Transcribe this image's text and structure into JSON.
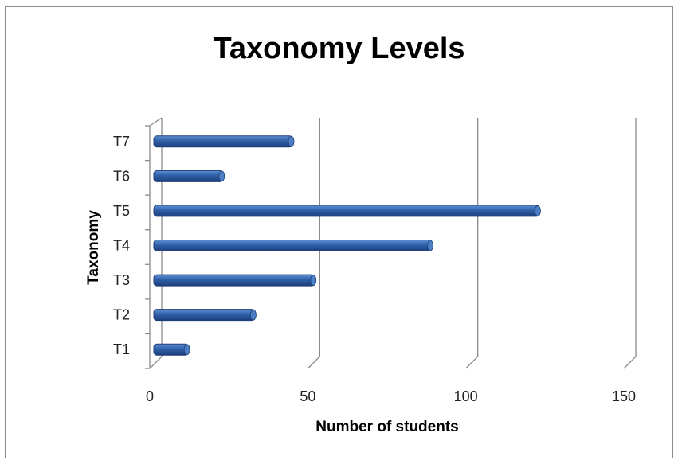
{
  "chart_data": {
    "type": "bar",
    "orientation": "horizontal",
    "title": "Taxonomy Levels",
    "xlabel": "Number of students",
    "ylabel": "Taxonomy",
    "categories": [
      "T1",
      "T2",
      "T3",
      "T4",
      "T5",
      "T6",
      "T7"
    ],
    "values": [
      11,
      32,
      51,
      88,
      122,
      22,
      44
    ],
    "xlim": [
      0,
      150
    ],
    "xticks": [
      "0",
      "50",
      "100",
      "150"
    ],
    "grid": "vertical",
    "legend": "none",
    "bar_color": "#2f5fa8"
  }
}
